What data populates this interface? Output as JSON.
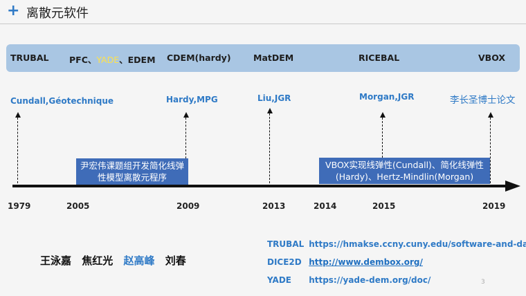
{
  "slide": {
    "title": "离散元软件",
    "plus_icon": "plus-icon",
    "page_number": "3"
  },
  "software_band": {
    "items": [
      "TRUBAL",
      "PFC、",
      "YADE",
      "、EDEM",
      "CDEM(hardy)",
      "MatDEM",
      "RICEBAL",
      "VBOX"
    ],
    "highlight_color": "#ffe24a",
    "band_color": "#a9c6e3"
  },
  "references": [
    "Cundall,Géotechnique",
    "Hardy,MPG",
    "Liu,JGR",
    "Morgan,JGR",
    "李长圣博士论文"
  ],
  "timeline": {
    "years": [
      "1979",
      "2005",
      "2009",
      "2013",
      "2014",
      "2015",
      "2019"
    ]
  },
  "notes": {
    "group_note": "尹宏伟课题组开发简化线弹性模型离散元程序",
    "vbox_note": "VBOX实现线弹性(Cundall)、简化线弹性(Hardy)、Hertz-Mindlin(Morgan)"
  },
  "authors": [
    "王泳嘉",
    "焦红光",
    "赵高峰",
    "刘春"
  ],
  "links": [
    {
      "name": "TRUBAL",
      "url": "https://hmakse.ccny.cuny.edu/software-and-data/"
    },
    {
      "name": "DICE2D",
      "url": "http://www.dembox.org/"
    },
    {
      "name": "YADE",
      "url": "https://yade-dem.org/doc/"
    }
  ],
  "colors": {
    "accent": "#2f7ac6",
    "note_bg": "#3f6cb8",
    "axis": "#111111"
  }
}
